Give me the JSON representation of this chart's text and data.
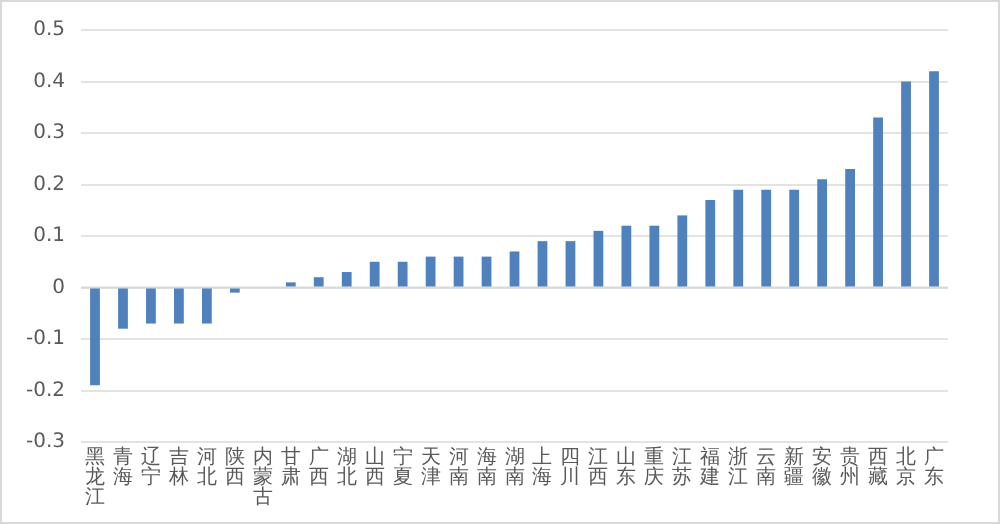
{
  "chart_data": {
    "type": "bar",
    "categories": [
      "黑龙江",
      "青海",
      "辽宁",
      "吉林",
      "河北",
      "陕西",
      "内蒙古",
      "甘肃",
      "广西",
      "湖北",
      "山西",
      "宁夏",
      "天津",
      "河南",
      "海南",
      "湖南",
      "上海",
      "四川",
      "江西",
      "山东",
      "重庆",
      "江苏",
      "福建",
      "浙江",
      "云南",
      "新疆",
      "安徽",
      "贵州",
      "西藏",
      "北京",
      "广东"
    ],
    "values": [
      -0.19,
      -0.08,
      -0.07,
      -0.07,
      -0.07,
      -0.01,
      0,
      0.01,
      0.02,
      0.03,
      0.05,
      0.05,
      0.06,
      0.06,
      0.06,
      0.07,
      0.09,
      0.09,
      0.11,
      0.12,
      0.12,
      0.14,
      0.17,
      0.19,
      0.19,
      0.19,
      0.21,
      0.23,
      0.33,
      0.4,
      0.42
    ],
    "color": "#4f81bd",
    "ylim": [
      -0.3,
      0.5
    ],
    "yticks": [
      -0.3,
      -0.2,
      -0.1,
      0,
      0.1,
      0.2,
      0.3,
      0.4,
      0.5
    ],
    "grid": "y",
    "legend": false
  }
}
